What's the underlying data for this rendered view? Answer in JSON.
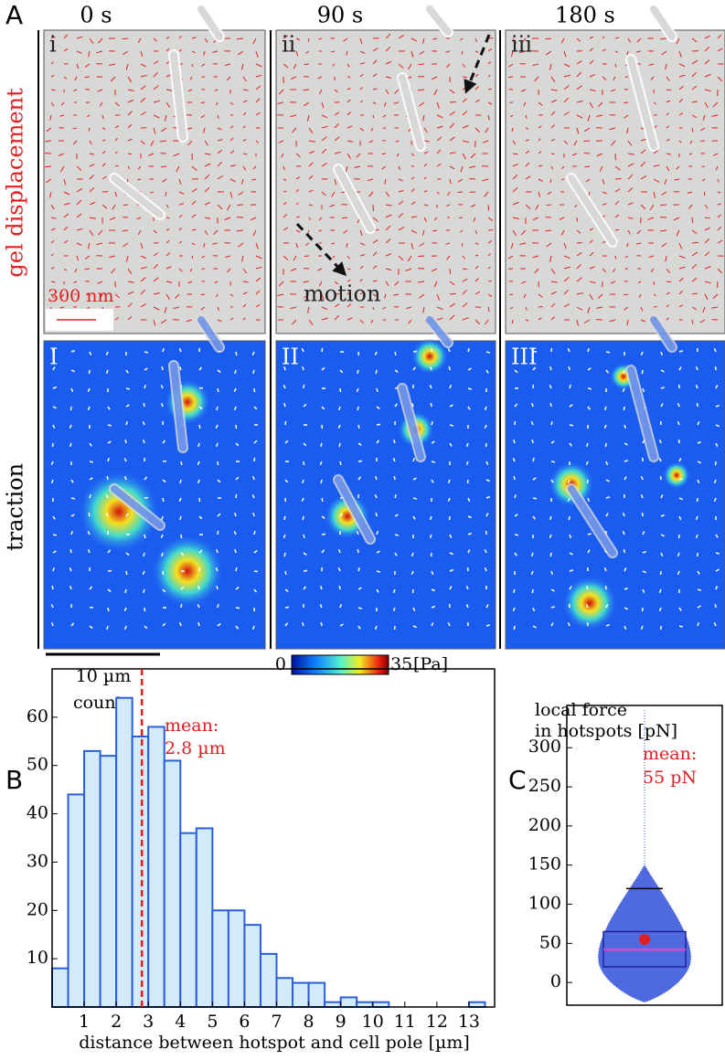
{
  "panel_a": {
    "label": "A",
    "times": [
      "0 s",
      "90 s",
      "180 s"
    ],
    "top_labels": [
      "i",
      "ii",
      "iii"
    ],
    "bottom_labels": [
      "I",
      "II",
      "III"
    ],
    "row_labels": [
      "gel displacement",
      "traction"
    ],
    "displacement_scale": "300 nm",
    "motion": "motion",
    "length_scale": "10 µm",
    "colorbar": {
      "min": "0",
      "max": "35",
      "unit": "[Pa]"
    }
  },
  "chart_data": [
    {
      "type": "histogram",
      "label": "B",
      "y_label": "counts",
      "x_label": "distance between hotspot and cell pole [µm]",
      "bins": [
        0,
        0.5,
        1,
        1.5,
        2,
        2.5,
        3,
        3.5,
        4,
        4.5,
        5,
        5.5,
        6,
        6.5,
        7,
        7.5,
        8,
        8.5,
        9,
        9.5,
        10,
        10.5,
        11,
        11.5,
        12,
        12.5,
        13,
        13.5
      ],
      "values": [
        8,
        44,
        53,
        52,
        64,
        56,
        58,
        51,
        36,
        37,
        20,
        20,
        17,
        11,
        6,
        5,
        5,
        1,
        2,
        1,
        1,
        0,
        0,
        0,
        0,
        0,
        1
      ],
      "color": "#d3ebf9",
      "edge_color": "#2b5fd8",
      "xlim": [
        0,
        13.8
      ],
      "xticks": [
        1,
        2,
        3,
        4,
        5,
        6,
        7,
        8,
        9,
        10,
        11,
        12,
        13
      ],
      "ylim": [
        0,
        70
      ],
      "yticks": [
        10,
        20,
        30,
        40,
        50,
        60
      ],
      "mean": 2.8,
      "mean_label": [
        "mean:",
        "2.8 µm"
      ],
      "mean_color": "#e02020"
    },
    {
      "type": "box",
      "label": "C",
      "y_label": [
        "local force",
        "in hotspots [pN]"
      ],
      "q1": 20,
      "median": 42,
      "q3": 65,
      "whisker_high": 120,
      "mean": 55,
      "mean_label": [
        "mean:",
        "55 pN"
      ],
      "mean_color": "#e02020",
      "color": "#2b4fd0",
      "ylim": [
        -29,
        354
      ],
      "yticks": [
        0,
        50,
        100,
        150,
        200,
        250,
        300
      ]
    }
  ]
}
